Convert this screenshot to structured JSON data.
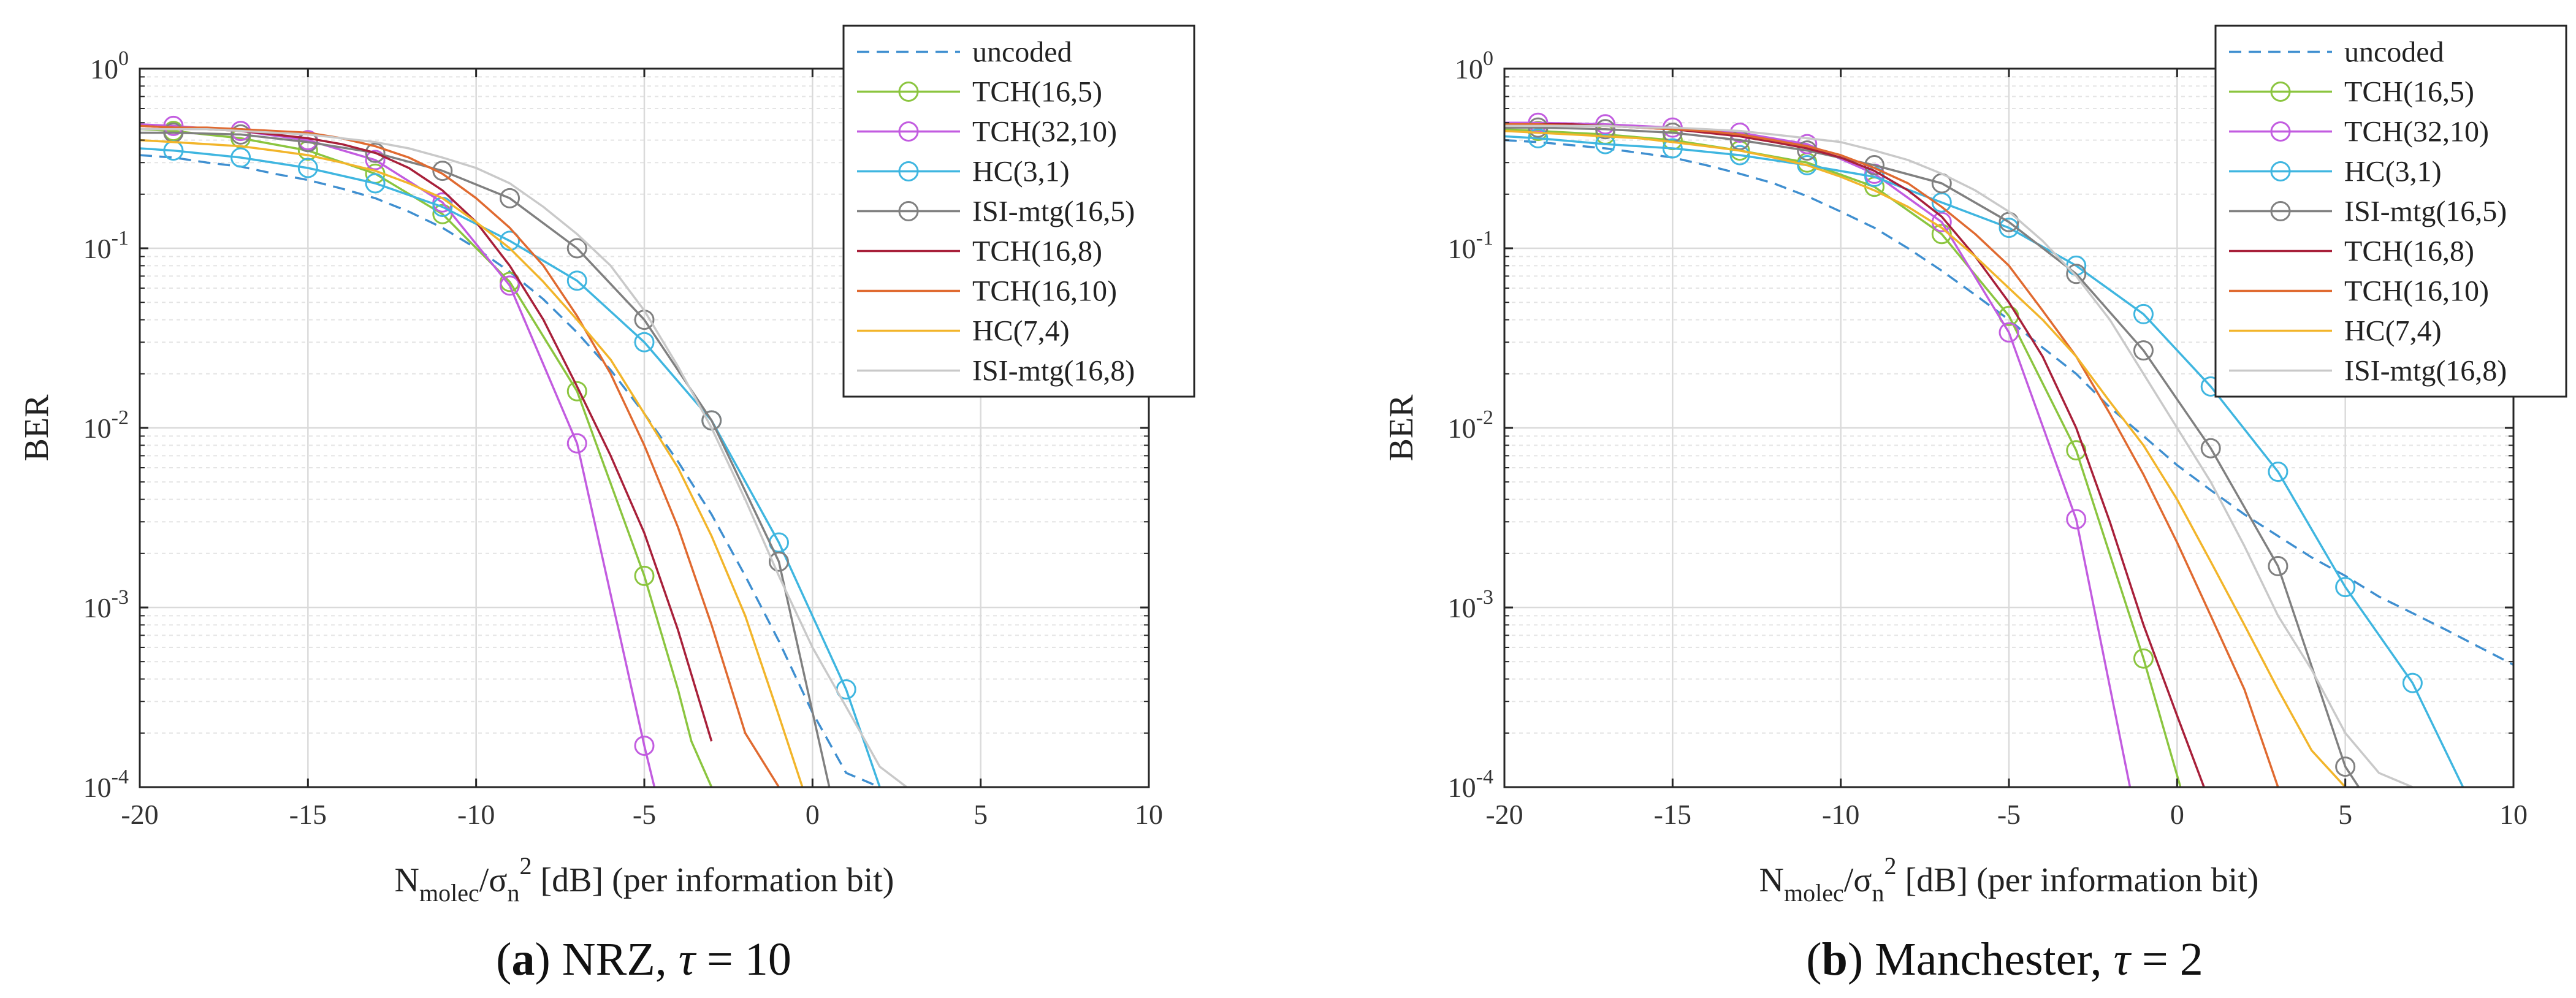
{
  "chart_data": [
    {
      "type": "line",
      "caption_label": "a",
      "caption_text": "NRZ, τ = 10",
      "caption_pre": "NRZ, ",
      "caption_tau": "τ",
      "caption_post": " = 10",
      "xlabel": "N_molec/σ_n^2 [dB] (per information bit)",
      "ylabel": "BER",
      "xlim": [
        -20,
        10
      ],
      "ylim": [
        0.0001,
        1
      ],
      "yscale": "log",
      "xticks": [
        -20,
        -15,
        -10,
        -5,
        0,
        5,
        10
      ],
      "xtick_labels": [
        "-20",
        "-15",
        "-10",
        "-5",
        "0",
        "5",
        "10"
      ],
      "yticks_exp": [
        -4,
        -3,
        -2,
        -1,
        0
      ],
      "ytick_base": "10",
      "grid": true,
      "legend_position": "top-right",
      "series": [
        {
          "name": "uncoded",
          "color": "#3f8fd0",
          "style": "dashed",
          "marker": "none",
          "x": [
            -20,
            -19,
            -18,
            -17,
            -16,
            -15,
            -14,
            -13,
            -12,
            -11,
            -10,
            -9,
            -8,
            -7,
            -6,
            -5,
            -4,
            -3,
            -2,
            -1,
            0,
            1,
            2
          ],
          "y": [
            0.33,
            0.32,
            0.3,
            0.285,
            0.26,
            0.24,
            0.215,
            0.19,
            0.16,
            0.13,
            0.1,
            0.074,
            0.052,
            0.034,
            0.021,
            0.012,
            0.0065,
            0.0033,
            0.0015,
            0.00065,
            0.00026,
            0.00012,
            0.0001
          ]
        },
        {
          "name": "TCH(16,5)",
          "color": "#8bc53f",
          "style": "solid",
          "marker": "circle",
          "x": [
            -20,
            -19,
            -17,
            -15,
            -13,
            -11,
            -9,
            -7,
            -5,
            -4,
            -3.6,
            -3
          ],
          "y": [
            0.46,
            0.45,
            0.41,
            0.35,
            0.26,
            0.155,
            0.065,
            0.016,
            0.0015,
            0.00035,
            0.00018,
            0.0001
          ]
        },
        {
          "name": "TCH(32,10)",
          "color": "#c25ce0",
          "style": "solid",
          "marker": "circle",
          "x": [
            -20,
            -19,
            -17,
            -15,
            -13,
            -11,
            -9,
            -7,
            -5,
            -4.7
          ],
          "y": [
            0.49,
            0.48,
            0.45,
            0.4,
            0.31,
            0.18,
            0.062,
            0.0082,
            0.00017,
            0.0001
          ]
        },
        {
          "name": "HC(3,1)",
          "color": "#3fb6e0",
          "style": "solid",
          "marker": "circle",
          "x": [
            -20,
            -19,
            -17,
            -15,
            -13,
            -11,
            -9,
            -7,
            -5,
            -3,
            -1,
            1,
            2
          ],
          "y": [
            0.36,
            0.35,
            0.32,
            0.28,
            0.23,
            0.17,
            0.11,
            0.066,
            0.03,
            0.011,
            0.0023,
            0.00035,
            0.0001
          ]
        },
        {
          "name": "ISI-mtg(16,5)",
          "color": "#808080",
          "style": "solid",
          "marker": "circle",
          "x": [
            -20,
            -19,
            -17,
            -15,
            -13,
            -11,
            -9,
            -7,
            -5,
            -3,
            -1,
            0.5
          ],
          "y": [
            0.44,
            0.44,
            0.43,
            0.39,
            0.34,
            0.27,
            0.19,
            0.1,
            0.04,
            0.011,
            0.0018,
            0.0001
          ]
        },
        {
          "name": "TCH(16,8)",
          "color": "#a8203a",
          "style": "solid",
          "marker": "none",
          "x": [
            -20,
            -19,
            -18,
            -17,
            -16,
            -15,
            -14,
            -13,
            -12,
            -11,
            -10,
            -9,
            -8,
            -7,
            -6,
            -5,
            -4,
            -3
          ],
          "y": [
            0.48,
            0.47,
            0.46,
            0.45,
            0.43,
            0.41,
            0.38,
            0.34,
            0.28,
            0.21,
            0.14,
            0.08,
            0.04,
            0.017,
            0.007,
            0.0026,
            0.00075,
            0.00018
          ]
        },
        {
          "name": "TCH(16,10)",
          "color": "#e06a30",
          "style": "solid",
          "marker": "none",
          "x": [
            -20,
            -19,
            -18,
            -17,
            -16,
            -15,
            -14,
            -13,
            -12,
            -11,
            -10,
            -9,
            -8,
            -7,
            -6,
            -5,
            -4,
            -3,
            -2,
            -1
          ],
          "y": [
            0.48,
            0.47,
            0.47,
            0.46,
            0.45,
            0.44,
            0.41,
            0.37,
            0.32,
            0.26,
            0.19,
            0.13,
            0.08,
            0.042,
            0.02,
            0.008,
            0.0028,
            0.0008,
            0.0002,
            0.0001
          ]
        },
        {
          "name": "HC(7,4)",
          "color": "#f2b52a",
          "style": "solid",
          "marker": "none",
          "x": [
            -20,
            -19,
            -18,
            -17,
            -16,
            -15,
            -14,
            -13,
            -12,
            -11,
            -10,
            -9,
            -8,
            -7,
            -6,
            -5,
            -4,
            -3,
            -2,
            -1,
            -0.3
          ],
          "y": [
            0.4,
            0.39,
            0.38,
            0.37,
            0.35,
            0.33,
            0.3,
            0.27,
            0.23,
            0.19,
            0.14,
            0.1,
            0.065,
            0.04,
            0.024,
            0.012,
            0.006,
            0.0025,
            0.0009,
            0.00025,
            0.0001
          ]
        },
        {
          "name": "ISI-mtg(16,8)",
          "color": "#c9c9c9",
          "style": "solid",
          "marker": "none",
          "x": [
            -20,
            -19,
            -18,
            -17,
            -16,
            -15,
            -14,
            -13,
            -12,
            -11,
            -10,
            -9,
            -8,
            -7,
            -6,
            -5,
            -4,
            -3,
            -2,
            -1,
            0,
            1,
            2,
            2.8
          ],
          "y": [
            0.46,
            0.46,
            0.46,
            0.45,
            0.44,
            0.43,
            0.41,
            0.39,
            0.36,
            0.32,
            0.28,
            0.23,
            0.17,
            0.12,
            0.08,
            0.045,
            0.022,
            0.01,
            0.004,
            0.0015,
            0.0006,
            0.00028,
            0.00013,
            0.0001
          ]
        }
      ]
    },
    {
      "type": "line",
      "caption_label": "b",
      "caption_text": "Manchester, τ = 2",
      "caption_pre": "Manchester, ",
      "caption_tau": "τ",
      "caption_post": " = 2",
      "xlabel": "N_molec/σ_n^2 [dB] (per information bit)",
      "ylabel": "BER",
      "xlim": [
        -20,
        10
      ],
      "ylim": [
        0.0001,
        1
      ],
      "yscale": "log",
      "xticks": [
        -20,
        -15,
        -10,
        -5,
        0,
        5,
        10
      ],
      "xtick_labels": [
        "-20",
        "-15",
        "-10",
        "-5",
        "0",
        "5",
        "10"
      ],
      "yticks_exp": [
        -4,
        -3,
        -2,
        -1,
        0
      ],
      "ytick_base": "10",
      "grid": true,
      "legend_position": "top-right",
      "series": [
        {
          "name": "uncoded",
          "color": "#3f8fd0",
          "style": "dashed",
          "marker": "none",
          "x": [
            -20,
            -19,
            -18,
            -17,
            -16,
            -15,
            -14,
            -13,
            -12,
            -11,
            -10,
            -9,
            -8,
            -7,
            -6,
            -5,
            -4,
            -3,
            -2,
            -1,
            0,
            1,
            2,
            3,
            4,
            5,
            6,
            7,
            8,
            9,
            10
          ],
          "y": [
            0.4,
            0.39,
            0.375,
            0.36,
            0.34,
            0.32,
            0.29,
            0.26,
            0.23,
            0.195,
            0.16,
            0.13,
            0.1,
            0.075,
            0.055,
            0.04,
            0.028,
            0.02,
            0.013,
            0.009,
            0.0062,
            0.0045,
            0.0033,
            0.0025,
            0.0019,
            0.0015,
            0.00115,
            0.00093,
            0.00075,
            0.0006,
            0.00048
          ]
        },
        {
          "name": "TCH(16,5)",
          "color": "#8bc53f",
          "style": "solid",
          "marker": "circle",
          "x": [
            -20,
            -19,
            -17,
            -15,
            -13,
            -11,
            -9,
            -7,
            -5,
            -3,
            -1,
            0.1
          ],
          "y": [
            0.46,
            0.45,
            0.43,
            0.4,
            0.35,
            0.3,
            0.22,
            0.12,
            0.042,
            0.0075,
            0.00052,
            0.0001
          ]
        },
        {
          "name": "TCH(32,10)",
          "color": "#c25ce0",
          "style": "solid",
          "marker": "circle",
          "x": [
            -20,
            -19,
            -17,
            -15,
            -13,
            -11,
            -9,
            -7,
            -5,
            -3,
            -1.4
          ],
          "y": [
            0.5,
            0.5,
            0.49,
            0.47,
            0.44,
            0.38,
            0.26,
            0.14,
            0.034,
            0.0031,
            0.0001
          ]
        },
        {
          "name": "HC(3,1)",
          "color": "#3fb6e0",
          "style": "solid",
          "marker": "circle",
          "x": [
            -20,
            -19,
            -17,
            -15,
            -13,
            -11,
            -9,
            -7,
            -5,
            -3,
            -1,
            1,
            3,
            5,
            7,
            8.5
          ],
          "y": [
            0.42,
            0.41,
            0.38,
            0.36,
            0.33,
            0.29,
            0.25,
            0.18,
            0.13,
            0.08,
            0.043,
            0.017,
            0.0057,
            0.0013,
            0.00038,
            0.0001
          ]
        },
        {
          "name": "ISI-mtg(16,5)",
          "color": "#808080",
          "style": "solid",
          "marker": "circle",
          "x": [
            -20,
            -19,
            -17,
            -15,
            -13,
            -11,
            -9,
            -7,
            -5,
            -3,
            -1,
            1,
            3,
            5,
            5.4
          ],
          "y": [
            0.47,
            0.47,
            0.46,
            0.44,
            0.4,
            0.35,
            0.29,
            0.23,
            0.14,
            0.072,
            0.027,
            0.0077,
            0.0017,
            0.00013,
            0.0001
          ]
        },
        {
          "name": "TCH(16,8)",
          "color": "#a8203a",
          "style": "solid",
          "marker": "none",
          "x": [
            -20,
            -19,
            -18,
            -17,
            -16,
            -15,
            -14,
            -13,
            -12,
            -11,
            -10,
            -9,
            -8,
            -7,
            -6,
            -5,
            -4,
            -3,
            -2,
            -1,
            0,
            0.8
          ],
          "y": [
            0.49,
            0.49,
            0.49,
            0.48,
            0.47,
            0.46,
            0.44,
            0.42,
            0.39,
            0.36,
            0.32,
            0.27,
            0.21,
            0.15,
            0.09,
            0.05,
            0.025,
            0.01,
            0.003,
            0.0008,
            0.00025,
            0.0001
          ]
        },
        {
          "name": "TCH(16,10)",
          "color": "#e06a30",
          "style": "solid",
          "marker": "none",
          "x": [
            -20,
            -19,
            -18,
            -17,
            -16,
            -15,
            -14,
            -13,
            -12,
            -11,
            -10,
            -9,
            -8,
            -7,
            -6,
            -5,
            -4,
            -3,
            -2,
            -1,
            0,
            1,
            2,
            3
          ],
          "y": [
            0.49,
            0.49,
            0.48,
            0.48,
            0.47,
            0.46,
            0.45,
            0.43,
            0.4,
            0.37,
            0.33,
            0.28,
            0.23,
            0.17,
            0.12,
            0.08,
            0.045,
            0.025,
            0.012,
            0.0055,
            0.0023,
            0.0009,
            0.00035,
            0.0001
          ]
        },
        {
          "name": "HC(7,4)",
          "color": "#f2b52a",
          "style": "solid",
          "marker": "none",
          "x": [
            -20,
            -19,
            -18,
            -17,
            -16,
            -15,
            -14,
            -13,
            -12,
            -11,
            -10,
            -9,
            -8,
            -7,
            -6,
            -5,
            -4,
            -3,
            -2,
            -1,
            0,
            1,
            2,
            3,
            4,
            5
          ],
          "y": [
            0.45,
            0.44,
            0.43,
            0.42,
            0.41,
            0.39,
            0.37,
            0.35,
            0.32,
            0.29,
            0.25,
            0.21,
            0.17,
            0.13,
            0.09,
            0.06,
            0.04,
            0.025,
            0.014,
            0.008,
            0.004,
            0.0018,
            0.0008,
            0.00035,
            0.00016,
            0.0001
          ]
        },
        {
          "name": "ISI-mtg(16,8)",
          "color": "#c9c9c9",
          "style": "solid",
          "marker": "none",
          "x": [
            -20,
            -19,
            -18,
            -17,
            -16,
            -15,
            -14,
            -13,
            -12,
            -11,
            -10,
            -9,
            -8,
            -7,
            -6,
            -5,
            -4,
            -3,
            -2,
            -1,
            0,
            1,
            2,
            3,
            4,
            5,
            6,
            7
          ],
          "y": [
            0.48,
            0.48,
            0.48,
            0.48,
            0.47,
            0.47,
            0.46,
            0.45,
            0.43,
            0.41,
            0.39,
            0.35,
            0.31,
            0.26,
            0.21,
            0.16,
            0.11,
            0.07,
            0.04,
            0.02,
            0.01,
            0.005,
            0.0022,
            0.0009,
            0.00045,
            0.0002,
            0.00012,
            0.0001
          ]
        }
      ]
    }
  ]
}
